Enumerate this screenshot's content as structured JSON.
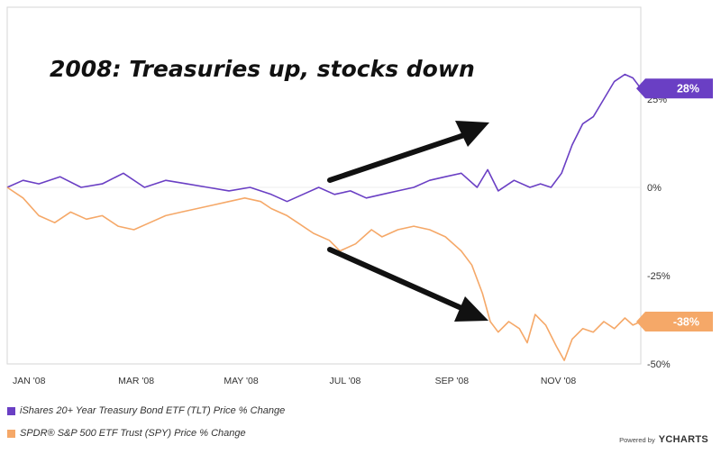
{
  "chart_data": {
    "type": "line",
    "title": "2008: Treasuries up, stocks down",
    "x_tick_labels": [
      "JAN '08",
      "MAR '08",
      "MAY '08",
      "JUL '08",
      "SEP '08",
      "NOV '08"
    ],
    "y_tick_labels": [
      "25%",
      "0%",
      "-25%",
      "-50%"
    ],
    "y_ticks": [
      25,
      0,
      -25,
      -50
    ],
    "ylim": [
      -50,
      50
    ],
    "xlim": [
      0,
      12
    ],
    "series": [
      {
        "name": "iShares 20+ Year Treasury Bond ETF (TLT) Price % Change",
        "color": "#6a3fc4",
        "end_label": "28%",
        "x": [
          0,
          0.3,
          0.6,
          1.0,
          1.4,
          1.8,
          2.2,
          2.6,
          3.0,
          3.4,
          3.8,
          4.2,
          4.6,
          5.0,
          5.3,
          5.6,
          5.9,
          6.2,
          6.5,
          6.8,
          7.1,
          7.4,
          7.7,
          8.0,
          8.3,
          8.6,
          8.9,
          9.1,
          9.3,
          9.6,
          9.9,
          10.1,
          10.3,
          10.5,
          10.7,
          10.9,
          11.1,
          11.3,
          11.5,
          11.7,
          11.85,
          12.0
        ],
        "values": [
          0,
          2,
          1,
          3,
          0,
          1,
          4,
          0,
          2,
          1,
          0,
          -1,
          0,
          -2,
          -4,
          -2,
          0,
          -2,
          -1,
          -3,
          -2,
          -1,
          0,
          2,
          3,
          4,
          0,
          5,
          -1,
          2,
          0,
          1,
          0,
          4,
          12,
          18,
          20,
          25,
          30,
          32,
          31,
          28
        ]
      },
      {
        "name": "SPDR® S&P 500 ETF Trust (SPY) Price % Change",
        "color": "#f5a868",
        "end_label": "-38%",
        "x": [
          0,
          0.3,
          0.6,
          0.9,
          1.2,
          1.5,
          1.8,
          2.1,
          2.4,
          2.7,
          3.0,
          3.3,
          3.6,
          3.9,
          4.2,
          4.5,
          4.8,
          5.0,
          5.3,
          5.5,
          5.8,
          6.1,
          6.3,
          6.6,
          6.9,
          7.1,
          7.4,
          7.7,
          8.0,
          8.3,
          8.6,
          8.8,
          9.0,
          9.15,
          9.3,
          9.5,
          9.7,
          9.85,
          10.0,
          10.2,
          10.4,
          10.55,
          10.7,
          10.9,
          11.1,
          11.3,
          11.5,
          11.7,
          11.85,
          12.0
        ],
        "values": [
          0,
          -3,
          -8,
          -10,
          -7,
          -9,
          -8,
          -11,
          -12,
          -10,
          -8,
          -7,
          -6,
          -5,
          -4,
          -3,
          -4,
          -6,
          -8,
          -10,
          -13,
          -15,
          -18,
          -16,
          -12,
          -14,
          -12,
          -11,
          -12,
          -14,
          -18,
          -22,
          -30,
          -38,
          -41,
          -38,
          -40,
          -44,
          -36,
          -39,
          -45,
          -49,
          -43,
          -40,
          -41,
          -38,
          -40,
          -37,
          -39,
          -38
        ]
      }
    ]
  },
  "annotations": {
    "arrow_up": "arrow pointing up toward treasuries line",
    "arrow_down": "arrow pointing down toward stocks line"
  },
  "credit": {
    "powered_by": "Powered by",
    "brand": "YCHARTS"
  }
}
